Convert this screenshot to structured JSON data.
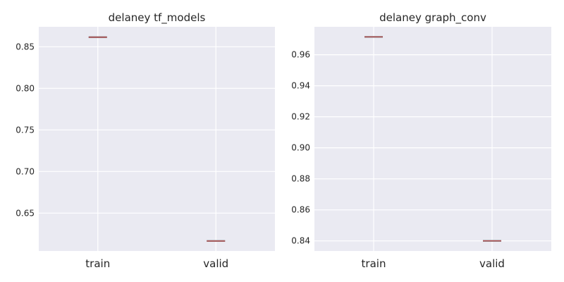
{
  "style": {
    "panel_bg": "#EAEAF2",
    "grid_color": "#FFFFFF",
    "box_color": "#7F7F7F",
    "median_color": "#C44E52"
  },
  "chart_data": [
    {
      "type": "box",
      "title": "delaney tf_models",
      "xlabel": "",
      "ylabel": "",
      "categories": [
        "train",
        "valid"
      ],
      "values": [
        0.8615,
        0.6165
      ],
      "ylim": [
        0.6045,
        0.874
      ],
      "yticks": [
        0.65,
        0.7,
        0.75,
        0.8,
        0.85
      ],
      "ytick_labels": [
        "0.65",
        "0.70",
        "0.75",
        "0.80",
        "0.85"
      ],
      "grid": true,
      "legend": "none"
    },
    {
      "type": "box",
      "title": "delaney graph_conv",
      "xlabel": "",
      "ylabel": "",
      "categories": [
        "train",
        "valid"
      ],
      "values": [
        0.9715,
        0.84
      ],
      "ylim": [
        0.8335,
        0.978
      ],
      "yticks": [
        0.84,
        0.86,
        0.88,
        0.9,
        0.92,
        0.94,
        0.96
      ],
      "ytick_labels": [
        "0.84",
        "0.86",
        "0.88",
        "0.90",
        "0.92",
        "0.94",
        "0.96"
      ],
      "grid": true,
      "legend": "none"
    }
  ]
}
